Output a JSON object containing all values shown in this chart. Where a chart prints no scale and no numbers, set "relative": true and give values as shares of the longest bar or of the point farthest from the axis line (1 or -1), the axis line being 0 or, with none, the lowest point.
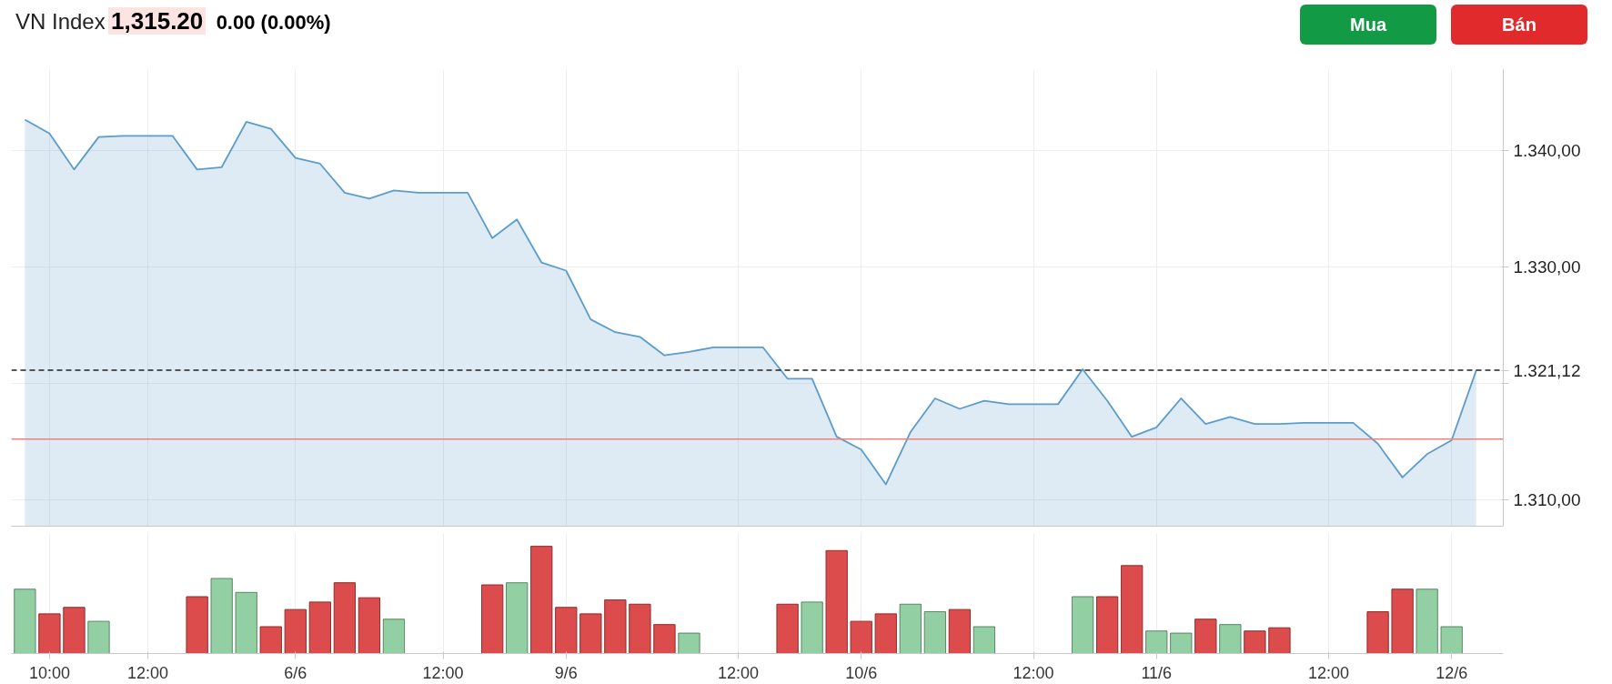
{
  "chart_data": [
    {
      "type": "area",
      "title": "VN Index",
      "annotations": [
        "1,315.20",
        "0.00 (0.00%)",
        "Mua",
        "Bán"
      ],
      "categories": [
        null,
        null,
        null,
        null,
        null,
        null,
        null,
        null,
        null,
        null,
        null,
        null,
        null,
        null,
        null,
        null,
        null,
        null,
        null,
        null,
        null,
        null,
        null,
        null,
        null,
        null,
        null,
        null,
        null,
        null,
        null,
        null,
        null,
        null,
        null,
        null,
        null,
        null,
        null,
        null,
        null,
        null,
        null,
        null,
        null,
        null,
        null,
        null,
        null,
        null,
        null,
        null,
        null,
        null,
        null,
        null,
        null,
        null,
        null,
        null
      ],
      "series": [
        {
          "color": "#5b9ccc",
          "values": [
            1342.7,
            1341.5,
            1338.4,
            1341.2,
            1341.3,
            1341.3,
            1341.3,
            1338.4,
            1338.6,
            1342.5,
            1341.9,
            1339.4,
            1338.9,
            1336.4,
            1335.9,
            1336.6,
            1336.4,
            1336.4,
            1336.4,
            1332.5,
            1334.1,
            1330.4,
            1329.7,
            1325.5,
            1324.4,
            1324.0,
            1322.4,
            1322.7,
            1323.1,
            1323.1,
            1323.1,
            1320.4,
            1320.4,
            1315.4,
            1314.3,
            1311.3,
            1315.8,
            1318.7,
            1317.8,
            1318.5,
            1318.2,
            1318.2,
            1318.2,
            1321.2,
            1318.5,
            1315.4,
            1316.2,
            1318.7,
            1316.5,
            1317.1,
            1316.5,
            1316.5,
            1316.6,
            1316.6,
            1316.6,
            1314.8,
            1311.9,
            1313.9,
            1315.1,
            1321.12
          ]
        }
      ],
      "ylim": [
        1307.7,
        1347
      ],
      "yticks": [
        {
          "value": 1310,
          "label": "1.310,00"
        },
        {
          "value": 1320,
          "label": null
        },
        {
          "value": 1330,
          "label": "1.330,00"
        },
        {
          "value": 1340,
          "label": "1.340,00"
        }
      ],
      "ref_lines": [
        {
          "axis": "y",
          "value": 1321.12,
          "label": "1.321,12",
          "color": "#222222",
          "line_style": "dashed"
        },
        {
          "axis": "y",
          "value": 1315.2,
          "color": "#f08080",
          "line_style": "solid"
        }
      ],
      "grid": true,
      "tick_labels": "y"
    },
    {
      "type": "bar",
      "relative": true,
      "categories": [
        null,
        "10:00",
        null,
        null,
        null,
        "12:00",
        null,
        null,
        null,
        null,
        null,
        "6/6",
        null,
        null,
        null,
        null,
        null,
        "12:00",
        null,
        null,
        null,
        null,
        "9/6",
        null,
        null,
        null,
        null,
        null,
        null,
        "12:00",
        null,
        null,
        null,
        null,
        "10/6",
        null,
        null,
        null,
        null,
        null,
        null,
        "12:00",
        null,
        null,
        null,
        null,
        "11/6",
        null,
        null,
        null,
        null,
        null,
        null,
        "12:00",
        null,
        null,
        null,
        null,
        "12/6",
        null
      ],
      "values": [
        0.6,
        0.37,
        0.43,
        0.3,
        null,
        null,
        null,
        0.53,
        0.7,
        0.57,
        0.25,
        0.41,
        0.48,
        0.66,
        0.52,
        0.32,
        null,
        null,
        null,
        0.64,
        0.66,
        1,
        0.43,
        0.37,
        0.5,
        0.46,
        0.27,
        0.19,
        null,
        null,
        null,
        0.46,
        0.48,
        0.96,
        0.3,
        0.37,
        0.46,
        0.39,
        0.41,
        0.25,
        null,
        null,
        null,
        0.53,
        0.53,
        0.82,
        0.21,
        0.19,
        0.32,
        0.27,
        0.21,
        0.24,
        null,
        null,
        null,
        0.39,
        0.6,
        0.6,
        0.25,
        null
      ],
      "colors": [
        "#92d0a4",
        "#dc4c4c",
        "#dc4c4c",
        "#92d0a4",
        null,
        null,
        null,
        "#dc4c4c",
        "#92d0a4",
        "#92d0a4",
        "#dc4c4c",
        "#dc4c4c",
        "#dc4c4c",
        "#dc4c4c",
        "#dc4c4c",
        "#92d0a4",
        null,
        null,
        null,
        "#dc4c4c",
        "#92d0a4",
        "#dc4c4c",
        "#dc4c4c",
        "#dc4c4c",
        "#dc4c4c",
        "#dc4c4c",
        "#dc4c4c",
        "#92d0a4",
        null,
        null,
        null,
        "#dc4c4c",
        "#92d0a4",
        "#dc4c4c",
        "#dc4c4c",
        "#dc4c4c",
        "#92d0a4",
        "#92d0a4",
        "#dc4c4c",
        "#92d0a4",
        null,
        null,
        null,
        "#92d0a4",
        "#dc4c4c",
        "#dc4c4c",
        "#92d0a4",
        "#92d0a4",
        "#dc4c4c",
        "#92d0a4",
        "#dc4c4c",
        "#dc4c4c",
        null,
        null,
        null,
        "#dc4c4c",
        "#dc4c4c",
        "#92d0a4",
        "#92d0a4",
        null
      ],
      "grid": "x",
      "tick_labels": "x"
    }
  ]
}
